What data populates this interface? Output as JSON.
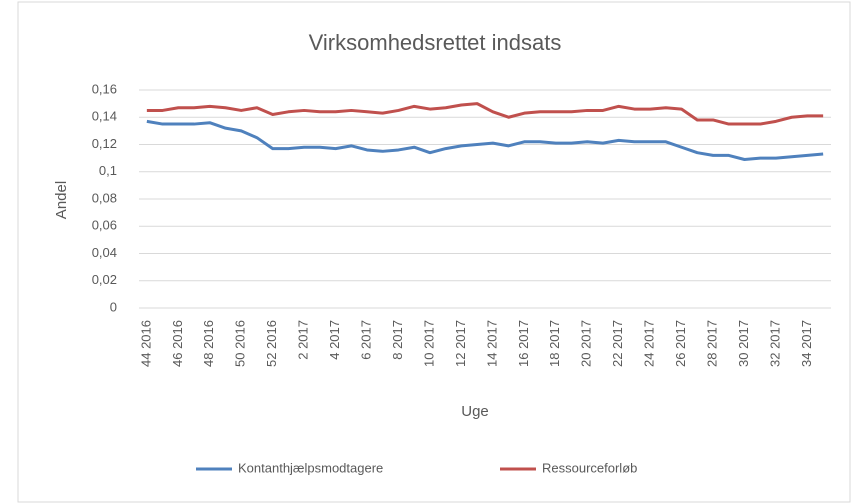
{
  "chart_data": {
    "type": "line",
    "title": "Virksomhedsrettet indsats",
    "x_label": "Uge",
    "y_label": "Andel",
    "categories": [
      "44 2016",
      null,
      "46 2016",
      null,
      "48 2016",
      null,
      "50 2016",
      null,
      "52 2016",
      null,
      "2 2017",
      null,
      "4 2017",
      null,
      "6 2017",
      null,
      "8 2017",
      null,
      "10 2017",
      null,
      "12 2017",
      null,
      "14 2017",
      null,
      "16 2017",
      null,
      "18 2017",
      null,
      "20 2017",
      null,
      "22 2017",
      null,
      "24 2017",
      null,
      "26 2017",
      null,
      "28 2017",
      null,
      "30 2017",
      null,
      "32 2017",
      null,
      "34 2017",
      null
    ],
    "series": [
      {
        "name": "Kontanthjælpsmodtagere",
        "color": "#4f81bd",
        "values": [
          0.137,
          0.135,
          0.135,
          0.135,
          0.136,
          0.132,
          0.13,
          0.125,
          0.117,
          0.117,
          0.118,
          0.118,
          0.117,
          0.119,
          0.116,
          0.115,
          0.116,
          0.118,
          0.114,
          0.117,
          0.119,
          0.12,
          0.121,
          0.119,
          0.122,
          0.122,
          0.121,
          0.121,
          0.122,
          0.121,
          0.123,
          0.122,
          0.122,
          0.122,
          0.118,
          0.114,
          0.112,
          0.112,
          0.109,
          0.11,
          0.11,
          0.111,
          0.112,
          0.113
        ]
      },
      {
        "name": "Ressourceforløb",
        "color": "#c0504d",
        "values": [
          0.145,
          0.145,
          0.147,
          0.147,
          0.148,
          0.147,
          0.145,
          0.147,
          0.142,
          0.144,
          0.145,
          0.144,
          0.144,
          0.145,
          0.144,
          0.143,
          0.145,
          0.148,
          0.146,
          0.147,
          0.149,
          0.15,
          0.144,
          0.14,
          0.143,
          0.144,
          0.144,
          0.144,
          0.145,
          0.145,
          0.148,
          0.146,
          0.146,
          0.147,
          0.146,
          0.138,
          0.138,
          0.135,
          0.135,
          0.135,
          0.137,
          0.14,
          0.141,
          0.141
        ]
      }
    ],
    "ylim": [
      0,
      0.16
    ],
    "yticks": [
      0,
      {
        "value": 0.02,
        "label": "0,02"
      },
      {
        "value": 0.04,
        "label": "0,04"
      },
      {
        "value": 0.06,
        "label": "0,06"
      },
      {
        "value": 0.08,
        "label": "0,08"
      },
      {
        "value": 0.1,
        "label": "0,1"
      },
      {
        "value": 0.12,
        "label": "0,12"
      },
      {
        "value": 0.14,
        "label": "0,14"
      },
      {
        "value": 0.16,
        "label": "0,16"
      }
    ],
    "grid": true,
    "legend": "bottom"
  }
}
